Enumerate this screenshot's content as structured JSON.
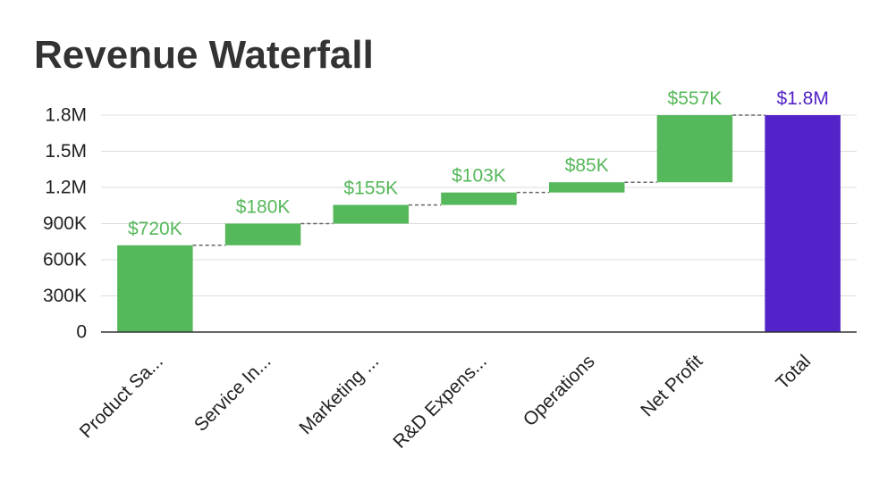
{
  "chart_data": {
    "type": "bar",
    "subtype": "waterfall",
    "title": "Revenue Waterfall",
    "xlabel": "",
    "ylabel": "",
    "categories": [
      "Product Sa...",
      "Service In...",
      "Marketing ...",
      "R&D Expens...",
      "Operations",
      "Net Profit",
      "Total"
    ],
    "values": [
      720000,
      180000,
      155000,
      103000,
      85000,
      557000,
      1800000
    ],
    "data_labels": [
      "$720K",
      "$180K",
      "$155K",
      "$103K",
      "$85K",
      "$557K",
      "$1.8M"
    ],
    "bar_kinds": [
      "increase",
      "increase",
      "increase",
      "increase",
      "increase",
      "increase",
      "total"
    ],
    "ylim": [
      0,
      1800000
    ],
    "y_ticks": [
      0,
      300000,
      600000,
      900000,
      1200000,
      1500000,
      1800000
    ],
    "y_tick_labels": [
      "0",
      "300K",
      "600K",
      "900K",
      "1.2M",
      "1.5M",
      "1.8M"
    ],
    "grid": true,
    "connectors": true,
    "colors": {
      "increase": "#55b85a",
      "total": "#5322c8",
      "grid": "#dddddd",
      "axis": "#333333",
      "connector": "#666666"
    }
  }
}
